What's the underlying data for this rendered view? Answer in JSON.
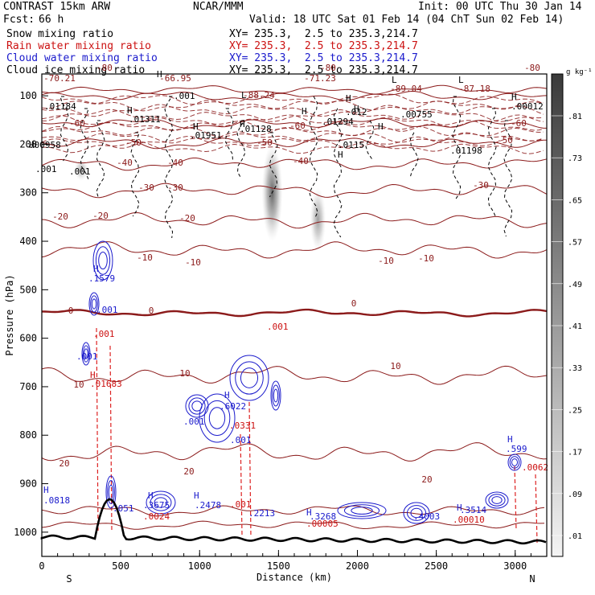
{
  "header": {
    "model": "CONTRAST 15km ARW",
    "org": "NCAR/MMM",
    "init": "Init: 00 UTC Thu 30 Jan 14",
    "fcst_label": "Fcst:",
    "fcst_value": "66 h",
    "valid": "Valid: 18 UTC Sat 01 Feb 14 (04 ChT Sun 02 Feb 14)"
  },
  "fields": [
    {
      "name": "Snow mixing ratio",
      "xy": "XY= 235.3,  2.5 to 235.3,214.7",
      "color": "#000000"
    },
    {
      "name": "Rain water mixing ratio",
      "xy": "XY= 235.3,  2.5 to 235.3,214.7",
      "color": "#cc1111"
    },
    {
      "name": "Cloud water mixing ratio",
      "xy": "XY= 235.3,  2.5 to 235.3,214.7",
      "color": "#1a1acc"
    },
    {
      "name": "Cloud ice mixing ratio",
      "xy": "XY= 235.3,  2.5 to 235.3,214.7",
      "color": "#000000"
    }
  ],
  "colorbar": {
    "unit": "g kg⁻¹",
    "labels": [
      ".81",
      ".73",
      ".65",
      ".57",
      ".49",
      ".41",
      ".33",
      ".25",
      ".17",
      ".09",
      ".01"
    ]
  },
  "chart_data": {
    "type": "contour cross-section",
    "xlabel": "Distance (km)",
    "ylabel": "Pressure (hPa)",
    "xlim": [
      0,
      3200
    ],
    "ylim": [
      1050,
      55
    ],
    "xticks": [
      0,
      500,
      1000,
      1500,
      2000,
      2500,
      3000
    ],
    "yticks": [
      100,
      200,
      300,
      400,
      500,
      600,
      700,
      800,
      900,
      1000
    ],
    "end_labels": {
      "left": "S",
      "right": "N"
    },
    "temperature_contours": {
      "color": "#8b1a1a",
      "levels": [
        {
          "value": -80,
          "p": 88
        },
        {
          "value": -70,
          "p": 101
        },
        {
          "value": -60,
          "p": 157
        },
        {
          "value": -50,
          "p": 197
        },
        {
          "value": -40,
          "p": 240
        },
        {
          "value": -30,
          "p": 295
        },
        {
          "value": -20,
          "p": 357
        },
        {
          "value": -10,
          "p": 418
        },
        {
          "value": 0,
          "p": 548
        },
        {
          "value": 10,
          "p": 677
        },
        {
          "value": 20,
          "p": 836
        }
      ],
      "labels": [
        "-80",
        "-80",
        "-80",
        "-70.21",
        "-66.95",
        "-71.23",
        "-89.04",
        "-87.18",
        "-88.24",
        "-60",
        "-60",
        "-60",
        "-50",
        "-50",
        "-50",
        "-40",
        "-40",
        "-40",
        "-30",
        "-30",
        "-30",
        "-20",
        "-20",
        "-20",
        "-10",
        "-10",
        "-10",
        "-10",
        "0",
        "0",
        "0",
        "10",
        "10",
        "10",
        "20",
        "20",
        "20"
      ]
    },
    "annotations": {
      "snow": [
        "H",
        "H",
        ".01184",
        ".001",
        "H",
        ".01311",
        "H",
        ".01951",
        "H",
        ".01128",
        "H",
        ".01294",
        ".012",
        "H",
        ".00755",
        "H",
        ".00958",
        "H",
        ".0115",
        "H",
        ".01198",
        ".00012",
        "H",
        "L",
        "L",
        "L",
        ".001",
        ".001"
      ],
      "rain": [
        ".001",
        "H",
        ".01683",
        ".0331",
        ".001",
        ".001",
        ".0024",
        ".00005",
        ".00010",
        ".0062"
      ],
      "cloud_water": [
        "H",
        ".1579",
        ".001",
        ".001",
        "H",
        ".6022",
        ".001",
        ".001",
        "H",
        ".0818",
        ".051",
        "H",
        ".3675",
        "H",
        ".2478",
        ".2213",
        "H",
        ".3268",
        ".4003",
        "H",
        ".3514",
        "H",
        ".599"
      ]
    },
    "cloud_ice_maxima_shading": [
      {
        "x_km": 1460,
        "p_top": 200,
        "p_bottom": 400,
        "max": 0.81
      },
      {
        "x_km": 1750,
        "p_top": 290,
        "p_bottom": 420,
        "max": 0.3
      },
      {
        "x_km": 250,
        "p_top": 230,
        "p_bottom": 275,
        "max": 0.12
      }
    ],
    "terrain": {
      "color": "#000000",
      "peak_x_km": 430,
      "peak_p": 932
    }
  }
}
